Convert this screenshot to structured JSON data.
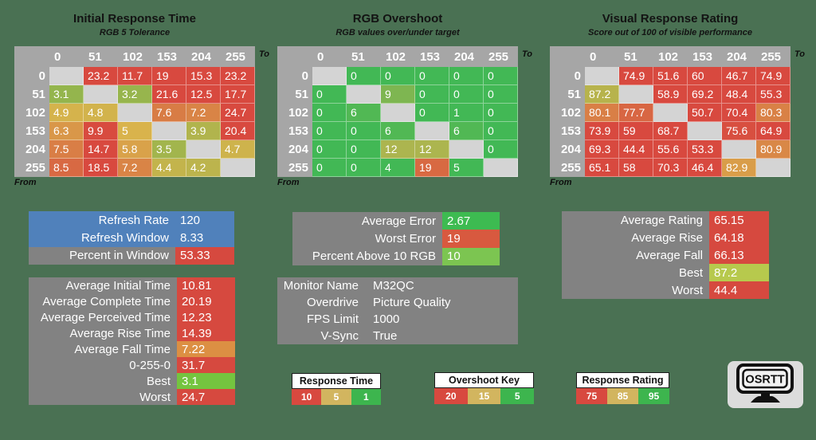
{
  "colors": {
    "background": "#4a7153",
    "header_gray": "#a6a6a6",
    "blank_cell": "#d4d4d4",
    "panel_gray": "#828282",
    "accent_blue": "#5081bb",
    "key_red": "#d8493f",
    "key_tan": "#d2b55f",
    "key_green": "#3db54e"
  },
  "chart_data": [
    {
      "type": "heatmap",
      "title": "Initial Response Time",
      "subtitle": "RGB 5 Tolerance",
      "xlabel": "To",
      "ylabel": "From",
      "columns": [
        "0",
        "51",
        "102",
        "153",
        "204",
        "255"
      ],
      "rows": [
        "0",
        "51",
        "102",
        "153",
        "204",
        "255"
      ],
      "values": [
        [
          null,
          23.2,
          11.7,
          19,
          15.3,
          23.2
        ],
        [
          3.1,
          null,
          3.2,
          21.6,
          12.5,
          17.7
        ],
        [
          4.9,
          4.8,
          null,
          7.6,
          7.2,
          24.7
        ],
        [
          6.3,
          9.9,
          5,
          null,
          3.9,
          20.4
        ],
        [
          7.5,
          14.7,
          5.8,
          3.5,
          null,
          4.7
        ],
        [
          8.5,
          18.5,
          7.2,
          4.4,
          4.2,
          null
        ]
      ],
      "color_scale": {
        "stops": [
          [
            1,
            "#47b84f"
          ],
          [
            5,
            "#d9b34c"
          ],
          [
            10,
            "#d8493f"
          ]
        ]
      }
    },
    {
      "type": "heatmap",
      "title": "RGB Overshoot",
      "subtitle": "RGB values over/under target",
      "xlabel": "To",
      "ylabel": "From",
      "columns": [
        "0",
        "51",
        "102",
        "153",
        "204",
        "255"
      ],
      "rows": [
        "0",
        "51",
        "102",
        "153",
        "204",
        "255"
      ],
      "values": [
        [
          null,
          0,
          0,
          0,
          0,
          0
        ],
        [
          0,
          null,
          9,
          0,
          0,
          0
        ],
        [
          0,
          6,
          null,
          0,
          1,
          0
        ],
        [
          0,
          0,
          6,
          null,
          6,
          0
        ],
        [
          0,
          0,
          12,
          12,
          null,
          0
        ],
        [
          0,
          0,
          4,
          19,
          5,
          null
        ]
      ],
      "color_scale": {
        "stops": [
          [
            5,
            "#42b855"
          ],
          [
            15,
            "#d9b34c"
          ],
          [
            20,
            "#d8573f"
          ]
        ]
      }
    },
    {
      "type": "heatmap",
      "title": "Visual Response Rating",
      "subtitle": "Score out of 100 of visible performance",
      "xlabel": "To",
      "ylabel": "From",
      "columns": [
        "0",
        "51",
        "102",
        "153",
        "204",
        "255"
      ],
      "rows": [
        "0",
        "51",
        "102",
        "153",
        "204",
        "255"
      ],
      "values": [
        [
          null,
          74.9,
          51.6,
          60,
          46.7,
          74.9
        ],
        [
          87.2,
          null,
          58.9,
          69.2,
          48.4,
          55.3
        ],
        [
          80.1,
          77.7,
          null,
          50.7,
          70.4,
          80.3
        ],
        [
          73.9,
          59,
          68.7,
          null,
          75.6,
          64.9
        ],
        [
          69.3,
          44.4,
          55.6,
          53.3,
          null,
          80.9
        ],
        [
          65.1,
          58,
          70.3,
          46.4,
          82.9,
          null
        ]
      ],
      "color_scale": {
        "stops": [
          [
            75,
            "#d8493f"
          ],
          [
            85,
            "#d9b34c"
          ],
          [
            95,
            "#3db54e"
          ]
        ]
      }
    }
  ],
  "panels": {
    "refresh": {
      "rows": [
        {
          "label": "Refresh Rate",
          "value": "120",
          "label_bg": "#5081bb",
          "value_bg": "#5081bb"
        },
        {
          "label": "Refresh Window",
          "value": "8.33",
          "label_bg": "#5081bb",
          "value_bg": "#5081bb"
        },
        {
          "label": "Percent in Window",
          "value": "53.33",
          "value_bg": "#d6493f"
        }
      ]
    },
    "time": {
      "rows": [
        {
          "label": "Average Initial Time",
          "value": "10.81",
          "value_bg": "#d6493f"
        },
        {
          "label": "Average Complete Time",
          "value": "20.19",
          "value_bg": "#d6493f"
        },
        {
          "label": "Average Perceived Time",
          "value": "12.23",
          "value_bg": "#d6493f"
        },
        {
          "label": "Average Rise Time",
          "value": "14.39",
          "value_bg": "#d6493f"
        },
        {
          "label": "Average Fall Time",
          "value": "7.22",
          "value_bg": "#dc8f43"
        },
        {
          "label": "0-255-0",
          "value": "31.7",
          "value_bg": "#d6493f"
        },
        {
          "label": "Best",
          "value": "3.1",
          "value_bg": "#74c43f"
        },
        {
          "label": "Worst",
          "value": "24.7",
          "value_bg": "#d6493f"
        }
      ]
    },
    "error": {
      "rows": [
        {
          "label": "Average Error",
          "value": "2.67",
          "value_bg": "#3dbb51"
        },
        {
          "label": "Worst Error",
          "value": "19",
          "value_bg": "#d8593f"
        },
        {
          "label": "Percent Above 10 RGB",
          "value": "10",
          "value_bg": "#7cc551"
        }
      ]
    },
    "monitor": {
      "rows": [
        {
          "label": "Monitor Name",
          "value": "M32QC"
        },
        {
          "label": "Overdrive",
          "value": "Picture Quality"
        },
        {
          "label": "FPS Limit",
          "value": "1000"
        },
        {
          "label": "V-Sync",
          "value": "True"
        }
      ]
    },
    "rating": {
      "rows": [
        {
          "label": "Average Rating",
          "value": "65.15",
          "value_bg": "#d6493f"
        },
        {
          "label": "Average Rise",
          "value": "64.18",
          "value_bg": "#d6493f"
        },
        {
          "label": "Average Fall",
          "value": "66.13",
          "value_bg": "#d6493f"
        },
        {
          "label": "Best",
          "value": "87.2",
          "value_bg": "#b7c94d"
        },
        {
          "label": "Worst",
          "value": "44.4",
          "value_bg": "#d6493f"
        }
      ]
    }
  },
  "keys": [
    {
      "title": "Response Time Key",
      "chips": [
        {
          "label": "10",
          "color": "#d8493f"
        },
        {
          "label": "5",
          "color": "#d2b55f"
        },
        {
          "label": "1",
          "color": "#3db54e"
        }
      ]
    },
    {
      "title": "Overshoot Key",
      "chips": [
        {
          "label": "20",
          "color": "#d8493f"
        },
        {
          "label": "15",
          "color": "#d2b55f"
        },
        {
          "label": "5",
          "color": "#3db54e"
        }
      ]
    },
    {
      "title": "Response Rating Key",
      "chips": [
        {
          "label": "75",
          "color": "#d8493f"
        },
        {
          "label": "85",
          "color": "#d2b55f"
        },
        {
          "label": "95",
          "color": "#3db54e"
        }
      ]
    }
  ],
  "logo": {
    "text": "OSRTT"
  }
}
